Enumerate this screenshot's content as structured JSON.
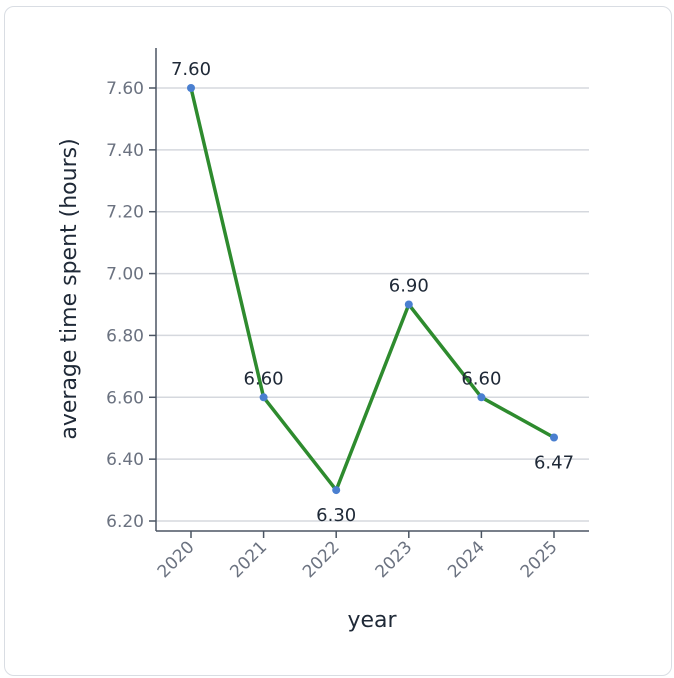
{
  "chart_data": {
    "type": "line",
    "title": "",
    "xlabel": "year",
    "ylabel": "average time spent (hours)",
    "categories": [
      "2020",
      "2021",
      "2022",
      "2023",
      "2024",
      "2025"
    ],
    "series": [
      {
        "values": [
          7.6,
          6.6,
          6.3,
          6.9,
          6.6,
          6.47
        ],
        "labels": [
          "7.60",
          "6.60",
          "6.30",
          "6.90",
          "6.60",
          "6.47"
        ],
        "line_color": "#2e8b2e",
        "marker_color": "#4a7fd0"
      }
    ],
    "yticks": [
      "6.20",
      "6.40",
      "6.60",
      "6.80",
      "7.00",
      "7.20",
      "7.40",
      "7.60"
    ],
    "ylim": [
      6.2,
      7.6
    ],
    "grid": true,
    "legend": "none"
  }
}
